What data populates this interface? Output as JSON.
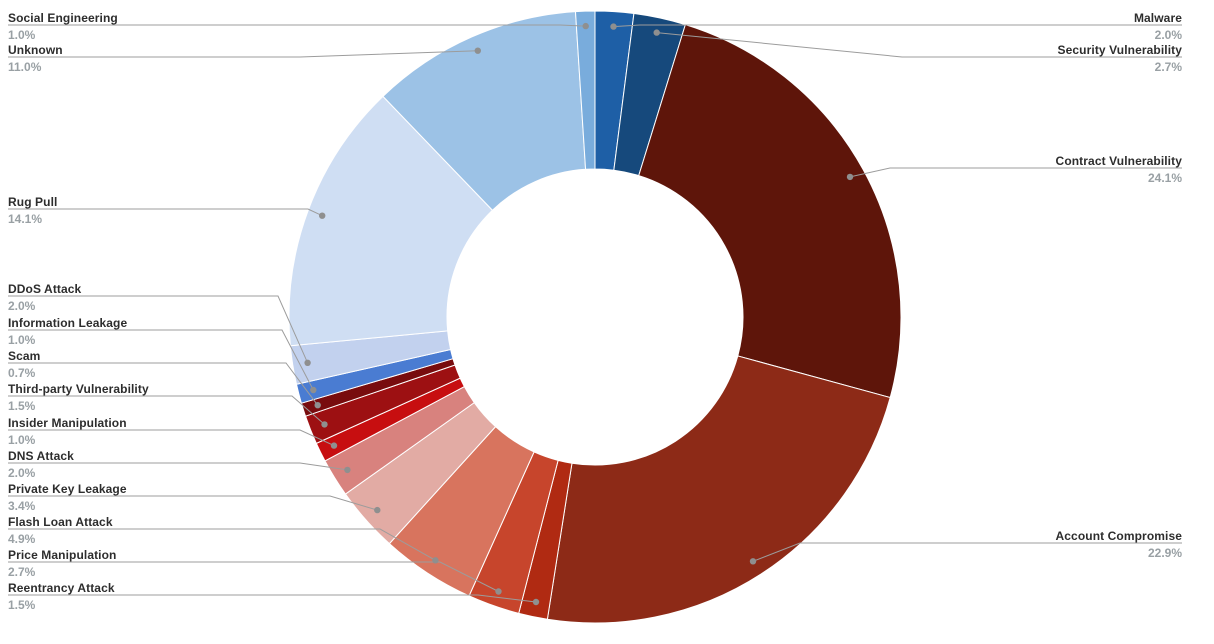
{
  "chart_data": {
    "type": "pie",
    "subtype": "donut",
    "title": "",
    "unit": "%",
    "legend_position": "none",
    "label_style": "edge-aligned leader lines with dots",
    "background_color": "#ffffff",
    "slices": [
      {
        "label": "Malware",
        "value": 2.0,
        "pct_label": "2.0%",
        "color": "#1e5fa6"
      },
      {
        "label": "Security Vulnerability",
        "value": 2.7,
        "pct_label": "2.7%",
        "color": "#16497c"
      },
      {
        "label": "Contract Vulnerability",
        "value": 24.1,
        "pct_label": "24.1%",
        "color": "#5e150a"
      },
      {
        "label": "Account Compromise",
        "value": 22.9,
        "pct_label": "22.9%",
        "color": "#8d2a17"
      },
      {
        "label": "Reentrancy Attack",
        "value": 1.5,
        "pct_label": "1.5%",
        "color": "#b02a12"
      },
      {
        "label": "Price Manipulation",
        "value": 2.7,
        "pct_label": "2.7%",
        "color": "#c7452c"
      },
      {
        "label": "Flash Loan Attack",
        "value": 4.9,
        "pct_label": "4.9%",
        "color": "#d8745e"
      },
      {
        "label": "Private Key Leakage",
        "value": 3.4,
        "pct_label": "3.4%",
        "color": "#e2aba4"
      },
      {
        "label": "DNS Attack",
        "value": 2.0,
        "pct_label": "2.0%",
        "color": "#d8827e"
      },
      {
        "label": "Insider Manipulation",
        "value": 1.0,
        "pct_label": "1.0%",
        "color": "#c70e10"
      },
      {
        "label": "Third-party Vulnerability",
        "value": 1.5,
        "pct_label": "1.5%",
        "color": "#9d1012"
      },
      {
        "label": "Scam",
        "value": 0.7,
        "pct_label": "0.7%",
        "color": "#780c0e"
      },
      {
        "label": "Information Leakage",
        "value": 1.0,
        "pct_label": "1.0%",
        "color": "#4a7cd2"
      },
      {
        "label": "DDoS Attack",
        "value": 2.0,
        "pct_label": "2.0%",
        "color": "#c2d1ee"
      },
      {
        "label": "Rug Pull",
        "value": 14.1,
        "pct_label": "14.1%",
        "color": "#cfdef3"
      },
      {
        "label": "Unknown",
        "value": 11.0,
        "pct_label": "11.0%",
        "color": "#9cc2e6"
      },
      {
        "label": "Social Engineering",
        "value": 1.0,
        "pct_label": "1.0%",
        "color": "#79acdc"
      }
    ]
  }
}
